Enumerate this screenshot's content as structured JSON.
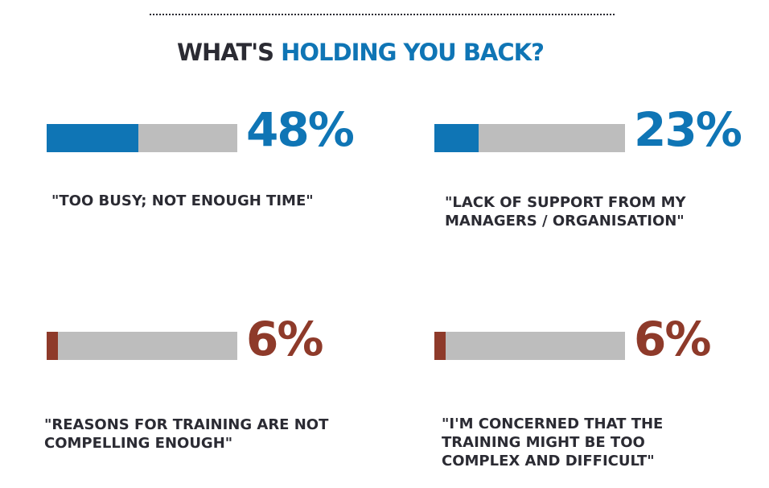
{
  "title": {
    "part1": "WHAT'S ",
    "part2": "HOLDING YOU BACK?"
  },
  "colors": {
    "dark": "#2b2b33",
    "blue": "#0f75b5",
    "red": "#8e3a2a",
    "track": "#bdbdbd"
  },
  "chart_data": {
    "type": "bar",
    "categories": [
      "\"TOO BUSY; NOT ENOUGH TIME\"",
      "\"LACK OF SUPPORT FROM MY MANAGERS / ORGANISATION\"",
      "\"REASONS FOR TRAINING ARE NOT COMPELLING ENOUGH\"",
      "\"I'M CONCERNED THAT THE TRAINING MIGHT BE TOO COMPLEX AND DIFFICULT\""
    ],
    "values": [
      48,
      23,
      6,
      6
    ],
    "ylim": [
      0,
      100
    ]
  },
  "stats": [
    {
      "value": 48,
      "display": "48%",
      "color": "#0f75b5",
      "label_lines": [
        "\"TOO BUSY; NOT ENOUGH TIME\""
      ]
    },
    {
      "value": 23,
      "display": "23%",
      "color": "#0f75b5",
      "label_lines": [
        "\"LACK OF SUPPORT FROM MY",
        "MANAGERS / ORGANISATION\""
      ]
    },
    {
      "value": 6,
      "display": "6%",
      "color": "#8e3a2a",
      "label_lines": [
        "\"REASONS FOR TRAINING ARE NOT",
        "COMPELLING ENOUGH\""
      ]
    },
    {
      "value": 6,
      "display": "6%",
      "color": "#8e3a2a",
      "label_lines": [
        "\"I'M CONCERNED THAT THE",
        "TRAINING MIGHT BE TOO",
        "COMPLEX AND DIFFICULT\""
      ]
    }
  ]
}
